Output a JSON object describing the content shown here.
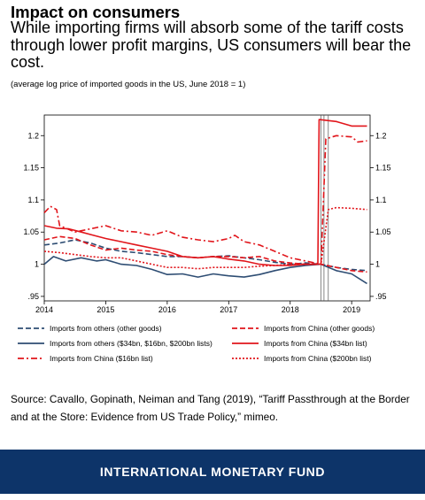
{
  "header": {
    "title": "Impact on consumers",
    "subtitle": "While importing firms will absorb some of the tariff costs through lower profit margins, US consumers will bear the cost.",
    "note": "(average log price of imported goods in the US, June 2018 = 1)"
  },
  "chart_data": {
    "type": "line",
    "title": "",
    "xlabel": "",
    "ylabel": "",
    "xlim": [
      2014.0,
      2019.3
    ],
    "ylim": [
      0.943,
      1.232
    ],
    "x_ticks": [
      "2014",
      "2015",
      "2016",
      "2017",
      "2018",
      "2019"
    ],
    "y_ticks": [
      ".95",
      "1",
      "1.05",
      "1.1",
      "1.15",
      "1.2"
    ],
    "right_axis_ticks": [
      ".95",
      "1",
      "1.05",
      "1.1",
      "1.15",
      "1.2"
    ],
    "grid": false,
    "legend_position": "bottom",
    "vertical_markers": [
      2018.5,
      2018.55,
      2018.62
    ],
    "series": [
      {
        "name": "Imports from others (other goods)",
        "color": "#2e4d73",
        "dash": "dash",
        "points": [
          [
            2014.0,
            1.03
          ],
          [
            2014.25,
            1.033
          ],
          [
            2014.5,
            1.038
          ],
          [
            2014.75,
            1.033
          ],
          [
            2015.0,
            1.025
          ],
          [
            2015.25,
            1.02
          ],
          [
            2015.5,
            1.018
          ],
          [
            2015.75,
            1.015
          ],
          [
            2016.0,
            1.012
          ],
          [
            2016.25,
            1.012
          ],
          [
            2016.5,
            1.01
          ],
          [
            2016.75,
            1.012
          ],
          [
            2017.0,
            1.013
          ],
          [
            2017.25,
            1.01
          ],
          [
            2017.5,
            1.007
          ],
          [
            2017.75,
            1.003
          ],
          [
            2018.0,
            1.0
          ],
          [
            2018.25,
            1.002
          ],
          [
            2018.5,
            1.0
          ],
          [
            2018.75,
            0.995
          ],
          [
            2019.0,
            0.992
          ],
          [
            2019.25,
            0.99
          ]
        ]
      },
      {
        "name": "Imports from others ($34bn, $16bn, $200bn lists)",
        "color": "#2e4d73",
        "dash": "solid",
        "points": [
          [
            2014.0,
            1.0
          ],
          [
            2014.15,
            1.012
          ],
          [
            2014.35,
            1.005
          ],
          [
            2014.6,
            1.01
          ],
          [
            2014.85,
            1.005
          ],
          [
            2015.0,
            1.007
          ],
          [
            2015.25,
            1.0
          ],
          [
            2015.5,
            0.998
          ],
          [
            2015.75,
            0.992
          ],
          [
            2016.0,
            0.984
          ],
          [
            2016.25,
            0.985
          ],
          [
            2016.5,
            0.98
          ],
          [
            2016.75,
            0.985
          ],
          [
            2017.0,
            0.982
          ],
          [
            2017.25,
            0.98
          ],
          [
            2017.5,
            0.984
          ],
          [
            2017.75,
            0.99
          ],
          [
            2018.0,
            0.995
          ],
          [
            2018.25,
            0.998
          ],
          [
            2018.5,
            1.0
          ],
          [
            2018.75,
            0.99
          ],
          [
            2019.0,
            0.985
          ],
          [
            2019.25,
            0.97
          ]
        ]
      },
      {
        "name": "Imports from China ($16bn list)",
        "color": "#e1151b",
        "dash": "dashdot",
        "points": [
          [
            2014.0,
            1.08
          ],
          [
            2014.1,
            1.09
          ],
          [
            2014.2,
            1.085
          ],
          [
            2014.25,
            1.06
          ],
          [
            2014.5,
            1.05
          ],
          [
            2014.75,
            1.055
          ],
          [
            2015.0,
            1.06
          ],
          [
            2015.25,
            1.052
          ],
          [
            2015.5,
            1.05
          ],
          [
            2015.75,
            1.045
          ],
          [
            2016.0,
            1.052
          ],
          [
            2016.25,
            1.042
          ],
          [
            2016.5,
            1.038
          ],
          [
            2016.75,
            1.035
          ],
          [
            2017.0,
            1.04
          ],
          [
            2017.1,
            1.045
          ],
          [
            2017.25,
            1.035
          ],
          [
            2017.5,
            1.03
          ],
          [
            2017.75,
            1.02
          ],
          [
            2018.0,
            1.01
          ],
          [
            2018.25,
            1.005
          ],
          [
            2018.5,
            1.0
          ],
          [
            2018.58,
            1.195
          ],
          [
            2018.75,
            1.2
          ],
          [
            2019.0,
            1.198
          ],
          [
            2019.1,
            1.19
          ],
          [
            2019.25,
            1.192
          ]
        ]
      },
      {
        "name": "Imports from China (other goods)",
        "color": "#e1151b",
        "dash": "dash",
        "points": [
          [
            2014.0,
            1.038
          ],
          [
            2014.25,
            1.043
          ],
          [
            2014.5,
            1.04
          ],
          [
            2014.75,
            1.03
          ],
          [
            2015.0,
            1.022
          ],
          [
            2015.25,
            1.025
          ],
          [
            2015.5,
            1.022
          ],
          [
            2015.75,
            1.02
          ],
          [
            2016.0,
            1.015
          ],
          [
            2016.25,
            1.012
          ],
          [
            2016.5,
            1.01
          ],
          [
            2016.75,
            1.012
          ],
          [
            2017.0,
            1.012
          ],
          [
            2017.25,
            1.01
          ],
          [
            2017.5,
            1.012
          ],
          [
            2017.75,
            1.005
          ],
          [
            2018.0,
            1.002
          ],
          [
            2018.25,
            1.0
          ],
          [
            2018.5,
            1.0
          ],
          [
            2018.75,
            0.995
          ],
          [
            2019.0,
            0.99
          ],
          [
            2019.25,
            0.988
          ]
        ]
      },
      {
        "name": "Imports from China ($34bn list)",
        "color": "#e1151b",
        "dash": "solid",
        "points": [
          [
            2014.0,
            1.06
          ],
          [
            2014.2,
            1.056
          ],
          [
            2014.4,
            1.055
          ],
          [
            2014.6,
            1.05
          ],
          [
            2014.8,
            1.045
          ],
          [
            2015.0,
            1.04
          ],
          [
            2015.25,
            1.035
          ],
          [
            2015.5,
            1.03
          ],
          [
            2015.75,
            1.025
          ],
          [
            2016.0,
            1.02
          ],
          [
            2016.25,
            1.012
          ],
          [
            2016.5,
            1.01
          ],
          [
            2016.75,
            1.012
          ],
          [
            2017.0,
            1.008
          ],
          [
            2017.25,
            1.005
          ],
          [
            2017.5,
            1.0
          ],
          [
            2017.75,
            0.998
          ],
          [
            2018.0,
            0.998
          ],
          [
            2018.25,
            1.0
          ],
          [
            2018.45,
            1.0
          ],
          [
            2018.47,
            1.225
          ],
          [
            2018.75,
            1.222
          ],
          [
            2019.0,
            1.215
          ],
          [
            2019.25,
            1.215
          ]
        ]
      },
      {
        "name": "Imports from China ($200bn list)",
        "color": "#e1151b",
        "dash": "dot",
        "points": [
          [
            2014.0,
            1.02
          ],
          [
            2014.25,
            1.018
          ],
          [
            2014.5,
            1.015
          ],
          [
            2014.75,
            1.012
          ],
          [
            2015.0,
            1.01
          ],
          [
            2015.25,
            1.01
          ],
          [
            2015.5,
            1.005
          ],
          [
            2015.75,
            1.0
          ],
          [
            2016.0,
            0.995
          ],
          [
            2016.25,
            0.995
          ],
          [
            2016.5,
            0.993
          ],
          [
            2016.75,
            0.995
          ],
          [
            2017.0,
            0.995
          ],
          [
            2017.25,
            0.995
          ],
          [
            2017.5,
            0.997
          ],
          [
            2017.75,
            0.998
          ],
          [
            2018.0,
            1.0
          ],
          [
            2018.25,
            1.0
          ],
          [
            2018.5,
            1.0
          ],
          [
            2018.62,
            1.085
          ],
          [
            2018.75,
            1.088
          ],
          [
            2019.0,
            1.087
          ],
          [
            2019.25,
            1.085
          ]
        ]
      }
    ]
  },
  "source": "Source: Cavallo, Gopinath, Neiman and Tang (2019), “Tariff Passthrough at the Border and at the Store: Evidence from US Trade Policy,” mimeo.",
  "footer": {
    "label": "INTERNATIONAL MONETARY FUND",
    "background": "#0d3469"
  }
}
